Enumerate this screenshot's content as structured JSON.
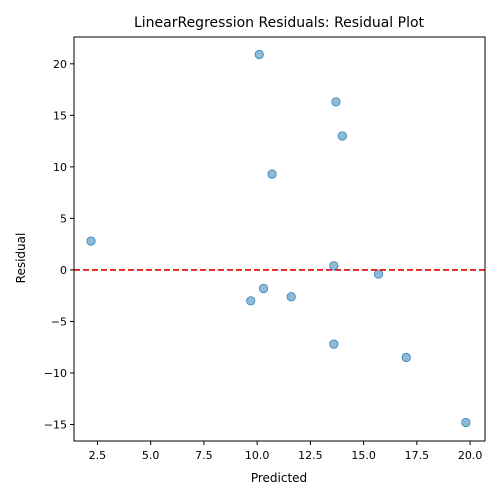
{
  "chart_data": {
    "type": "scatter",
    "title": "LinearRegression Residuals: Residual Plot",
    "xlabel": "Predicted",
    "ylabel": "Residual",
    "xlim": [
      1.4,
      20.7
    ],
    "ylim": [
      -16.6,
      22.6
    ],
    "xticks": [
      2.5,
      5.0,
      7.5,
      10.0,
      12.5,
      15.0,
      17.5,
      20.0
    ],
    "xtick_labels": [
      "2.5",
      "5.0",
      "7.5",
      "10.0",
      "12.5",
      "15.0",
      "17.5",
      "20.0"
    ],
    "yticks": [
      -15,
      -10,
      -5,
      0,
      5,
      10,
      15,
      20
    ],
    "ytick_labels": [
      "−15",
      "−10",
      "−5",
      "0",
      "5",
      "10",
      "15",
      "20"
    ],
    "grid": false,
    "legend": "none",
    "reference_line": {
      "y": 0,
      "style": "dashed",
      "color": "#e00000"
    },
    "marker_color": "#1f77b4",
    "marker_alpha": 0.5,
    "points": [
      {
        "x": 2.2,
        "y": 2.8
      },
      {
        "x": 10.1,
        "y": 20.9
      },
      {
        "x": 13.7,
        "y": 16.3
      },
      {
        "x": 14.0,
        "y": 13.0
      },
      {
        "x": 10.7,
        "y": 9.3
      },
      {
        "x": 13.6,
        "y": 0.4
      },
      {
        "x": 15.7,
        "y": -0.4
      },
      {
        "x": 10.3,
        "y": -1.8
      },
      {
        "x": 11.6,
        "y": -2.6
      },
      {
        "x": 9.7,
        "y": -3.0
      },
      {
        "x": 13.6,
        "y": -7.2
      },
      {
        "x": 17.0,
        "y": -8.5
      },
      {
        "x": 19.8,
        "y": -14.8
      }
    ]
  }
}
